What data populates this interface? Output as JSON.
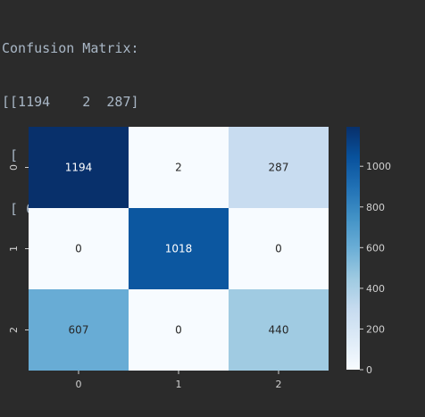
{
  "console": {
    "lines": [
      "Confusion Matrix:",
      "[[1194    2  287]",
      " [   0 1018    0]",
      " [ 607    0  440]]"
    ]
  },
  "chart_data": {
    "type": "heatmap",
    "title": "",
    "xlabel": "",
    "ylabel": "",
    "x_categories": [
      "0",
      "1",
      "2"
    ],
    "y_categories": [
      "0",
      "1",
      "2"
    ],
    "values": [
      [
        1194,
        2,
        287
      ],
      [
        0,
        1018,
        0
      ],
      [
        607,
        0,
        440
      ]
    ],
    "colormap": "Blues",
    "colorbar": {
      "min": 0,
      "max": 1194,
      "ticks": [
        0,
        200,
        400,
        600,
        800,
        1000
      ]
    },
    "annot_color_dark": "#262626",
    "annot_color_light": "#ffffff"
  }
}
